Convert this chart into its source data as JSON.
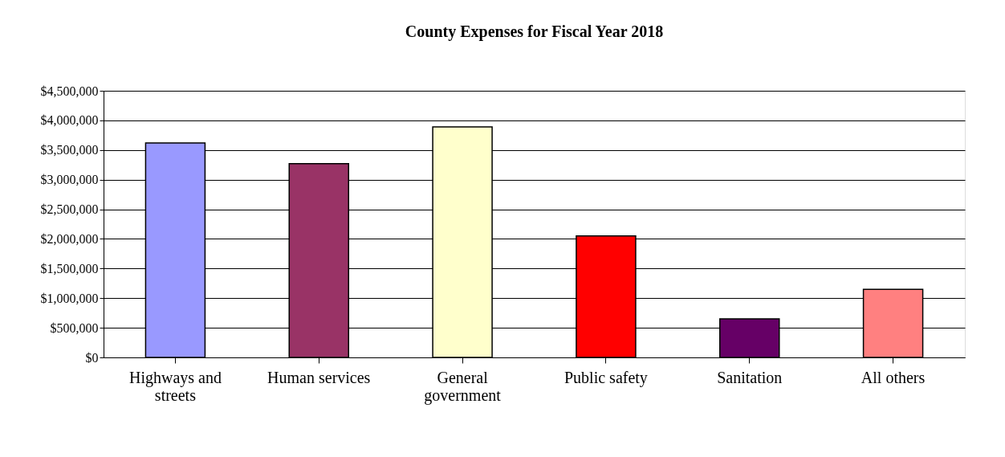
{
  "chart_data": {
    "type": "bar",
    "title": "County Expenses for Fiscal Year 2018",
    "categories": [
      "Highways and\nstreets",
      "Human services",
      "General\ngovernment",
      "Public safety",
      "Sanitation",
      "All others"
    ],
    "values": [
      3620000,
      3270000,
      3890000,
      2050000,
      650000,
      1150000
    ],
    "colors": [
      "#9999ff",
      "#993366",
      "#ffffcc",
      "#ff0000",
      "#660066",
      "#ff8080"
    ],
    "ylim": [
      0,
      4500000
    ],
    "yticks": [
      {
        "value": 0,
        "label": "$0"
      },
      {
        "value": 500000,
        "label": "$500,000"
      },
      {
        "value": 1000000,
        "label": "$1,000,000"
      },
      {
        "value": 1500000,
        "label": "$1,500,000"
      },
      {
        "value": 2000000,
        "label": "$2,000,000"
      },
      {
        "value": 2500000,
        "label": "$2,500,000"
      },
      {
        "value": 3000000,
        "label": "$3,000,000"
      },
      {
        "value": 3500000,
        "label": "$3,500,000"
      },
      {
        "value": 4000000,
        "label": "$4,000,000"
      },
      {
        "value": 4500000,
        "label": "$4,500,000"
      }
    ],
    "grid": "y",
    "legend": false
  }
}
